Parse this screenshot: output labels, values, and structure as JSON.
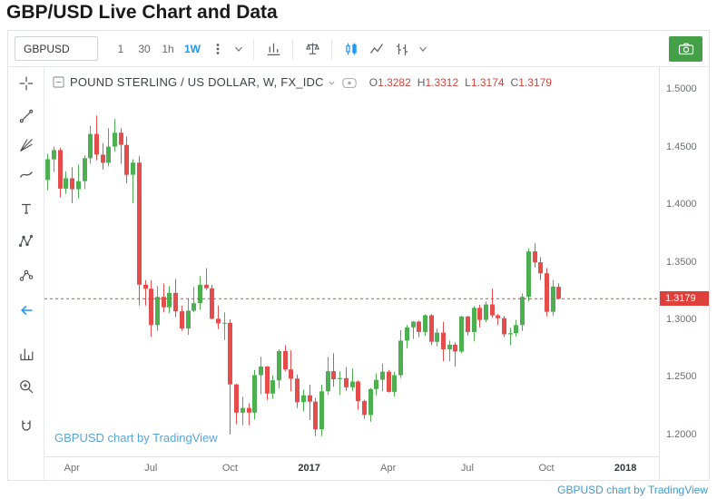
{
  "page": {
    "title": "GBP/USD Live Chart and Data",
    "attribution": "GBPUSD chart by TradingView"
  },
  "toolbar": {
    "symbol": "GBPUSD",
    "intervals": [
      {
        "label": "1",
        "active": false
      },
      {
        "label": "30",
        "active": false
      },
      {
        "label": "1h",
        "active": false
      },
      {
        "label": "1W",
        "active": true
      }
    ],
    "icons": [
      "dots-vertical",
      "chevron-down",
      "indicators",
      "compare-scales",
      "candlestick-style",
      "line-style",
      "bar-style",
      "chevron-down",
      "camera"
    ]
  },
  "legend": {
    "title": "POUND STERLING / US DOLLAR, W, FX_IDC",
    "icons": [
      "minus-square",
      "chevron-down",
      "visibility"
    ],
    "ohlc": [
      {
        "label": "O",
        "value": "1.3282"
      },
      {
        "label": "H",
        "value": "1.3312"
      },
      {
        "label": "L",
        "value": "1.3174"
      },
      {
        "label": "C",
        "value": "1.3179"
      }
    ]
  },
  "sidebar_tools": [
    "crosshair",
    "trend-line",
    "gann-fib",
    "brush",
    "text",
    "xabcd-pattern",
    "forecast",
    "back-arrow",
    "bar-chart",
    "zoom-in",
    "magnet"
  ],
  "watermark": "GBPUSD chart by TradingView",
  "colors": {
    "up": "#4caf50",
    "down": "#e54d4d",
    "accent": "#2196f3",
    "last_price": "#e0403c",
    "link": "#3f99cf",
    "camera_button": "#43a047"
  },
  "chart_data": {
    "type": "candlestick",
    "title": "POUND STERLING / US DOLLAR",
    "symbol": "GBPUSD",
    "interval": "W",
    "exchange": "FX_IDC",
    "ylim": [
      1.181,
      1.519
    ],
    "y_ticks": [
      1.5,
      1.45,
      1.4,
      1.35,
      1.3,
      1.25,
      1.2
    ],
    "x_slots": 101,
    "x_ticks": [
      {
        "i": 4,
        "label": "Apr",
        "emph": false
      },
      {
        "i": 17,
        "label": "Jul",
        "emph": false
      },
      {
        "i": 30,
        "label": "Oct",
        "emph": false
      },
      {
        "i": 43,
        "label": "2017",
        "emph": true
      },
      {
        "i": 56,
        "label": "Apr",
        "emph": false
      },
      {
        "i": 69,
        "label": "Jul",
        "emph": false
      },
      {
        "i": 82,
        "label": "Oct",
        "emph": false
      },
      {
        "i": 95,
        "label": "2018",
        "emph": true
      }
    ],
    "last_price": 1.3179,
    "ohlc_current": {
      "o": 1.3282,
      "h": 1.3312,
      "l": 1.3174,
      "c": 1.3179
    },
    "candles": [
      [
        1.421,
        1.4437,
        1.412,
        1.439
      ],
      [
        1.439,
        1.45,
        1.428,
        1.447
      ],
      [
        1.447,
        1.449,
        1.406,
        1.4135
      ],
      [
        1.4135,
        1.4285,
        1.409,
        1.4225
      ],
      [
        1.4225,
        1.432,
        1.401,
        1.413
      ],
      [
        1.413,
        1.4345,
        1.405,
        1.42
      ],
      [
        1.42,
        1.4425,
        1.413,
        1.44
      ],
      [
        1.44,
        1.468,
        1.435,
        1.461
      ],
      [
        1.461,
        1.477,
        1.438,
        1.443
      ],
      [
        1.443,
        1.453,
        1.43,
        1.436
      ],
      [
        1.436,
        1.466,
        1.433,
        1.45
      ],
      [
        1.45,
        1.474,
        1.446,
        1.462
      ],
      [
        1.462,
        1.466,
        1.435,
        1.4515
      ],
      [
        1.4515,
        1.4585,
        1.418,
        1.4255
      ],
      [
        1.4255,
        1.439,
        1.401,
        1.436
      ],
      [
        1.436,
        1.442,
        1.312,
        1.33
      ],
      [
        1.33,
        1.334,
        1.312,
        1.3265
      ],
      [
        1.3265,
        1.334,
        1.285,
        1.295
      ],
      [
        1.295,
        1.329,
        1.29,
        1.3195
      ],
      [
        1.3195,
        1.331,
        1.306,
        1.3105
      ],
      [
        1.3105,
        1.329,
        1.3055,
        1.323
      ],
      [
        1.323,
        1.335,
        1.302,
        1.307
      ],
      [
        1.307,
        1.312,
        1.29,
        1.292
      ],
      [
        1.292,
        1.3185,
        1.2865,
        1.3075
      ],
      [
        1.3075,
        1.328,
        1.306,
        1.314
      ],
      [
        1.314,
        1.3375,
        1.3085,
        1.33
      ],
      [
        1.33,
        1.3445,
        1.3255,
        1.327
      ],
      [
        1.327,
        1.33,
        1.3,
        1.3005
      ],
      [
        1.3005,
        1.312,
        1.2915,
        1.2965
      ],
      [
        1.2965,
        1.306,
        1.282,
        1.297
      ],
      [
        1.297,
        1.3,
        1.2,
        1.2435
      ],
      [
        1.2435,
        1.244,
        1.209,
        1.219
      ],
      [
        1.219,
        1.233,
        1.208,
        1.223
      ],
      [
        1.223,
        1.227,
        1.208,
        1.219
      ],
      [
        1.219,
        1.256,
        1.213,
        1.2515
      ],
      [
        1.2515,
        1.2675,
        1.235,
        1.259
      ],
      [
        1.259,
        1.2595,
        1.23,
        1.2355
      ],
      [
        1.2355,
        1.2515,
        1.231,
        1.247
      ],
      [
        1.247,
        1.274,
        1.24,
        1.2725
      ],
      [
        1.2725,
        1.2775,
        1.255,
        1.2565
      ],
      [
        1.2565,
        1.273,
        1.2375,
        1.2485
      ],
      [
        1.2485,
        1.252,
        1.223,
        1.228
      ],
      [
        1.228,
        1.239,
        1.22,
        1.234
      ],
      [
        1.234,
        1.243,
        1.2125,
        1.2285
      ],
      [
        1.2285,
        1.2315,
        1.1985,
        1.2045
      ],
      [
        1.2045,
        1.2435,
        1.1985,
        1.2375
      ],
      [
        1.2375,
        1.2675,
        1.2345,
        1.255
      ],
      [
        1.255,
        1.2705,
        1.2415,
        1.248
      ],
      [
        1.248,
        1.255,
        1.2345,
        1.249
      ],
      [
        1.249,
        1.2585,
        1.238,
        1.241
      ],
      [
        1.241,
        1.257,
        1.238,
        1.246
      ],
      [
        1.246,
        1.247,
        1.2215,
        1.229
      ],
      [
        1.229,
        1.23,
        1.2135,
        1.217
      ],
      [
        1.217,
        1.2405,
        1.211,
        1.2395
      ],
      [
        1.2395,
        1.253,
        1.234,
        1.2475
      ],
      [
        1.2475,
        1.2615,
        1.2375,
        1.2545
      ],
      [
        1.2545,
        1.256,
        1.2365,
        1.237
      ],
      [
        1.237,
        1.2545,
        1.233,
        1.2515
      ],
      [
        1.2515,
        1.2905,
        1.249,
        1.2815
      ],
      [
        1.2815,
        1.295,
        1.275,
        1.293
      ],
      [
        1.293,
        1.2985,
        1.283,
        1.298
      ],
      [
        1.298,
        1.299,
        1.2845,
        1.289
      ],
      [
        1.289,
        1.3045,
        1.2855,
        1.3035
      ],
      [
        1.3035,
        1.3045,
        1.2775,
        1.2805
      ],
      [
        1.2805,
        1.292,
        1.2765,
        1.2885
      ],
      [
        1.2885,
        1.298,
        1.2635,
        1.274
      ],
      [
        1.274,
        1.2815,
        1.2635,
        1.278
      ],
      [
        1.278,
        1.28,
        1.259,
        1.272
      ],
      [
        1.272,
        1.303,
        1.2705,
        1.3025
      ],
      [
        1.3025,
        1.303,
        1.286,
        1.289
      ],
      [
        1.289,
        1.3115,
        1.281,
        1.31
      ],
      [
        1.31,
        1.3125,
        1.293,
        1.2995
      ],
      [
        1.2995,
        1.3155,
        1.2975,
        1.313
      ],
      [
        1.313,
        1.3265,
        1.3015,
        1.3035
      ],
      [
        1.3035,
        1.3045,
        1.295,
        1.301
      ],
      [
        1.301,
        1.303,
        1.2845,
        1.287
      ],
      [
        1.287,
        1.2925,
        1.2775,
        1.288
      ],
      [
        1.288,
        1.2995,
        1.285,
        1.295
      ],
      [
        1.295,
        1.3225,
        1.29,
        1.3195
      ],
      [
        1.3195,
        1.3617,
        1.3155,
        1.359
      ],
      [
        1.359,
        1.366,
        1.345,
        1.3495
      ],
      [
        1.3495,
        1.354,
        1.334,
        1.34
      ],
      [
        1.34,
        1.3445,
        1.3025,
        1.3065
      ],
      [
        1.3065,
        1.334,
        1.303,
        1.3285
      ],
      [
        1.3282,
        1.3312,
        1.3174,
        1.3179
      ]
    ]
  }
}
